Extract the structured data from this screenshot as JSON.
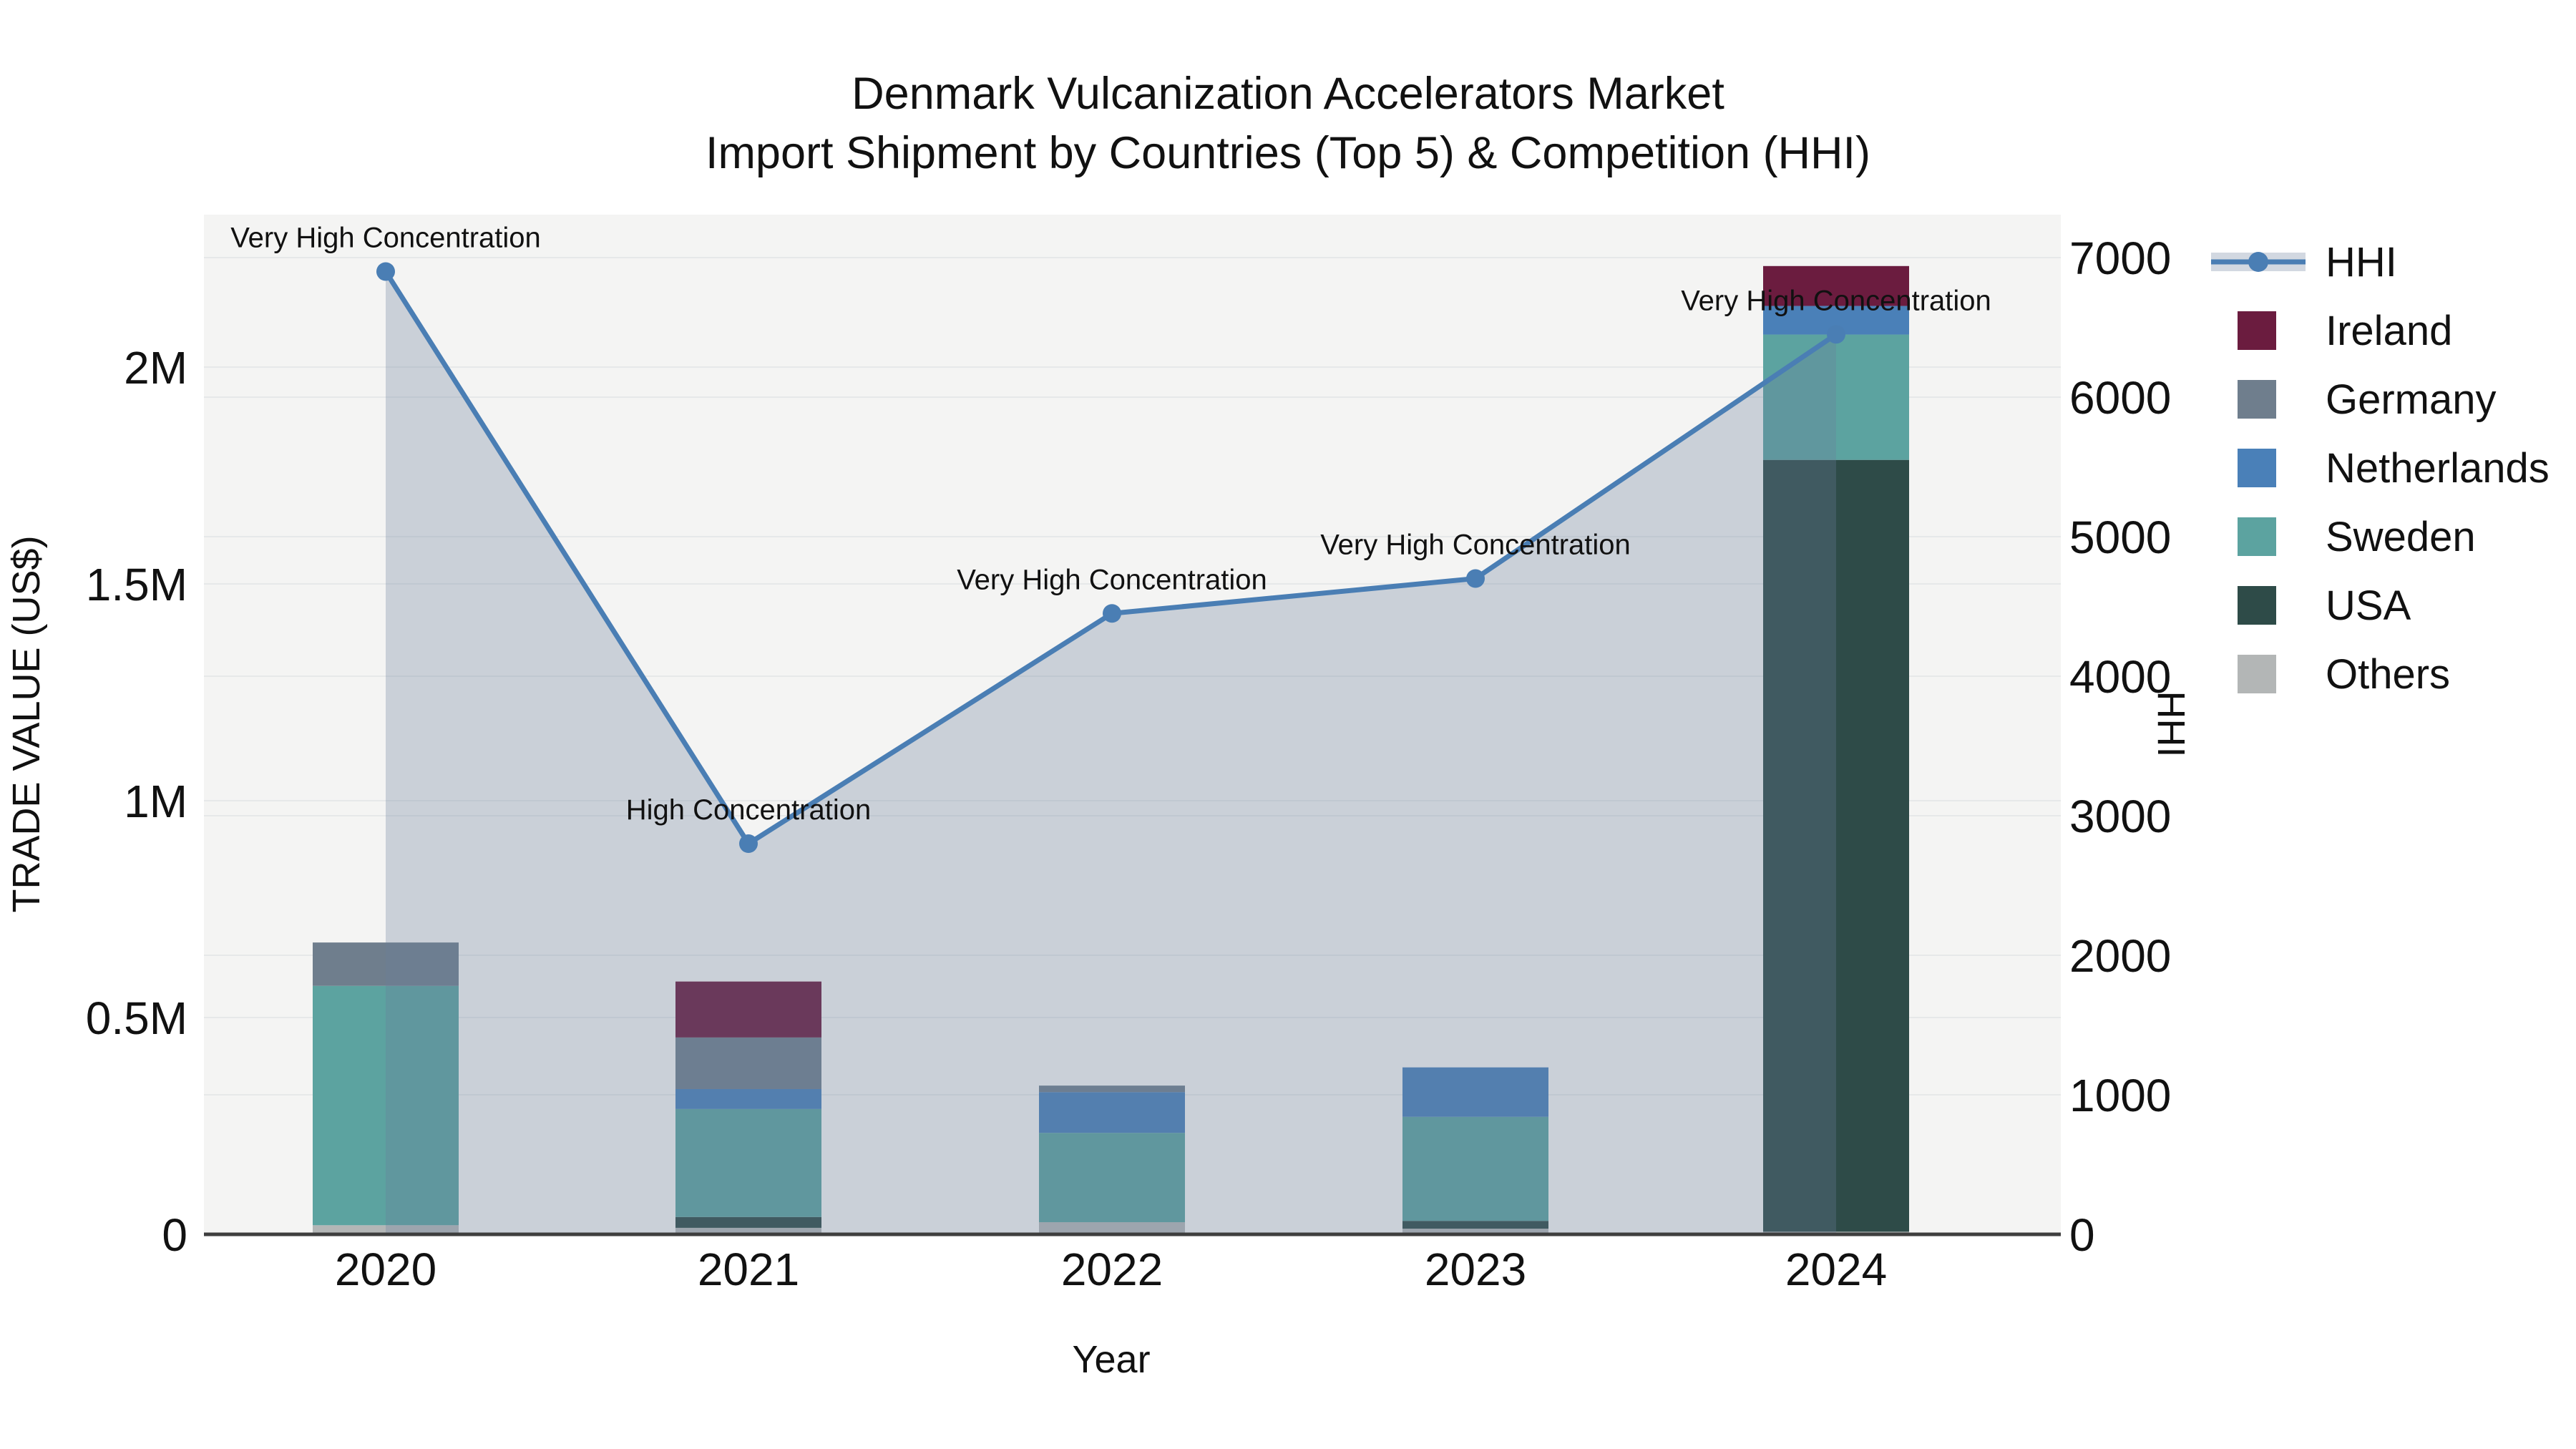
{
  "title": {
    "line1": "Denmark Vulcanization Accelerators Market",
    "line2": "Import Shipment by Countries (Top 5) & Competition (HHI)"
  },
  "axes": {
    "x": {
      "label": "Year",
      "ticks": [
        "2020",
        "2021",
        "2022",
        "2023",
        "2024"
      ]
    },
    "left": {
      "label": "TRADE VALUE (US$)",
      "ticks": [
        "0",
        "0.5M",
        "1M",
        "1.5M",
        "2M"
      ],
      "tick_values": [
        0,
        500000,
        1000000,
        1500000,
        2000000
      ]
    },
    "right": {
      "label": "HHI",
      "ticks": [
        "0",
        "1000",
        "2000",
        "3000",
        "4000",
        "5000",
        "6000",
        "7000"
      ],
      "tick_values": [
        0,
        1000,
        2000,
        3000,
        4000,
        5000,
        6000,
        7000
      ]
    }
  },
  "legend": {
    "items": [
      {
        "label": "HHI",
        "type": "line",
        "color": "#4A7EB4"
      },
      {
        "label": "Ireland",
        "type": "swatch",
        "color": "#6B1C3F"
      },
      {
        "label": "Germany",
        "type": "swatch",
        "color": "#6F7E8D"
      },
      {
        "label": "Netherlands",
        "type": "swatch",
        "color": "#4A80B8"
      },
      {
        "label": "Sweden",
        "type": "swatch",
        "color": "#5CA3A0"
      },
      {
        "label": "USA",
        "type": "swatch",
        "color": "#2E4B48"
      },
      {
        "label": "Others",
        "type": "swatch",
        "color": "#B3B6B6"
      }
    ]
  },
  "chart_data": {
    "type": "combo",
    "sub_types": [
      "stacked-bar",
      "line-area"
    ],
    "title": "Denmark Vulcanization Accelerators Market — Import Shipment by Countries (Top 5) & Competition (HHI)",
    "xlabel": "Year",
    "ylabel": "TRADE VALUE (US$)",
    "y2label": "HHI",
    "categories": [
      "2020",
      "2021",
      "2022",
      "2023",
      "2024"
    ],
    "bar_unit": "US$",
    "stack_order_bottom_to_top": [
      "Others",
      "USA",
      "Sweden",
      "Netherlands",
      "Germany",
      "Ireland"
    ],
    "series": [
      {
        "name": "Ireland",
        "color": "#6B1C3F",
        "values": [
          0,
          129000,
          0,
          0,
          92000
        ]
      },
      {
        "name": "Germany",
        "color": "#6F7E8D",
        "values": [
          100000,
          119000,
          15000,
          0,
          0
        ]
      },
      {
        "name": "Netherlands",
        "color": "#4A80B8",
        "values": [
          0,
          46000,
          94000,
          114000,
          66000
        ]
      },
      {
        "name": "Sweden",
        "color": "#5CA3A0",
        "values": [
          552000,
          249000,
          206000,
          240000,
          289000
        ]
      },
      {
        "name": "USA",
        "color": "#2E4B48",
        "values": [
          0,
          25000,
          0,
          18000,
          1780000
        ]
      },
      {
        "name": "Others",
        "color": "#B3B6B6",
        "values": [
          21000,
          15000,
          28000,
          13000,
          6000
        ]
      }
    ],
    "bar_totals": [
      673000,
      583000,
      343000,
      385000,
      2233000
    ],
    "line": {
      "name": "HHI",
      "axis": "right",
      "color": "#4A7EB4",
      "fill_color": "rgba(105,125,155,0.30)",
      "values": [
        6900,
        2800,
        4450,
        4700,
        6450
      ]
    },
    "annotations": [
      "Very High Concentration",
      "High Concentration",
      "Very High Concentration",
      "Very High Concentration",
      "Very High Concentration"
    ],
    "ylim": [
      0,
      2352000
    ],
    "y2lim": [
      0,
      7308
    ],
    "grid": true,
    "legend_position": "right"
  },
  "colors": {
    "plot_background": "#F4F4F3",
    "page_background": "#FFFFFF",
    "gridline": "#E6E8E9",
    "axis_line": "#3E3E3E",
    "text": "#111111"
  }
}
